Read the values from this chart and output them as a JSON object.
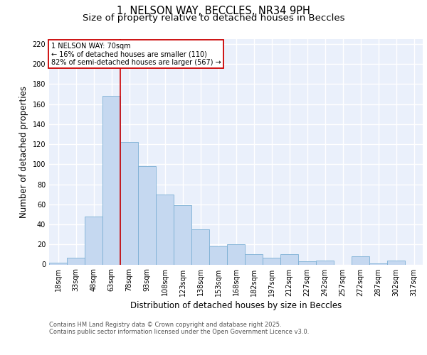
{
  "title_line1": "1, NELSON WAY, BECCLES, NR34 9PH",
  "title_line2": "Size of property relative to detached houses in Beccles",
  "xlabel": "Distribution of detached houses by size in Beccles",
  "ylabel": "Number of detached properties",
  "bar_labels": [
    "18sqm",
    "33sqm",
    "48sqm",
    "63sqm",
    "78sqm",
    "93sqm",
    "108sqm",
    "123sqm",
    "138sqm",
    "153sqm",
    "168sqm",
    "182sqm",
    "197sqm",
    "212sqm",
    "227sqm",
    "242sqm",
    "257sqm",
    "272sqm",
    "287sqm",
    "302sqm",
    "317sqm"
  ],
  "bar_values": [
    2,
    7,
    48,
    168,
    122,
    98,
    70,
    59,
    35,
    18,
    20,
    10,
    7,
    10,
    3,
    4,
    0,
    8,
    1,
    4,
    0
  ],
  "bar_color": "#c5d8f0",
  "bar_edge_color": "#7bafd4",
  "background_color": "#eaf0fb",
  "grid_color": "#ffffff",
  "vline_x": 3.5,
  "vline_color": "#cc0000",
  "annotation_text": "1 NELSON WAY: 70sqm\n← 16% of detached houses are smaller (110)\n82% of semi-detached houses are larger (567) →",
  "annotation_box_color": "#cc0000",
  "ylim": [
    0,
    225
  ],
  "yticks": [
    0,
    20,
    40,
    60,
    80,
    100,
    120,
    140,
    160,
    180,
    200,
    220
  ],
  "footnote_line1": "Contains HM Land Registry data © Crown copyright and database right 2025.",
  "footnote_line2": "Contains public sector information licensed under the Open Government Licence v3.0.",
  "title_fontsize": 10.5,
  "subtitle_fontsize": 9.5,
  "axis_label_fontsize": 8.5,
  "tick_fontsize": 7,
  "annotation_fontsize": 7,
  "footnote_fontsize": 6
}
